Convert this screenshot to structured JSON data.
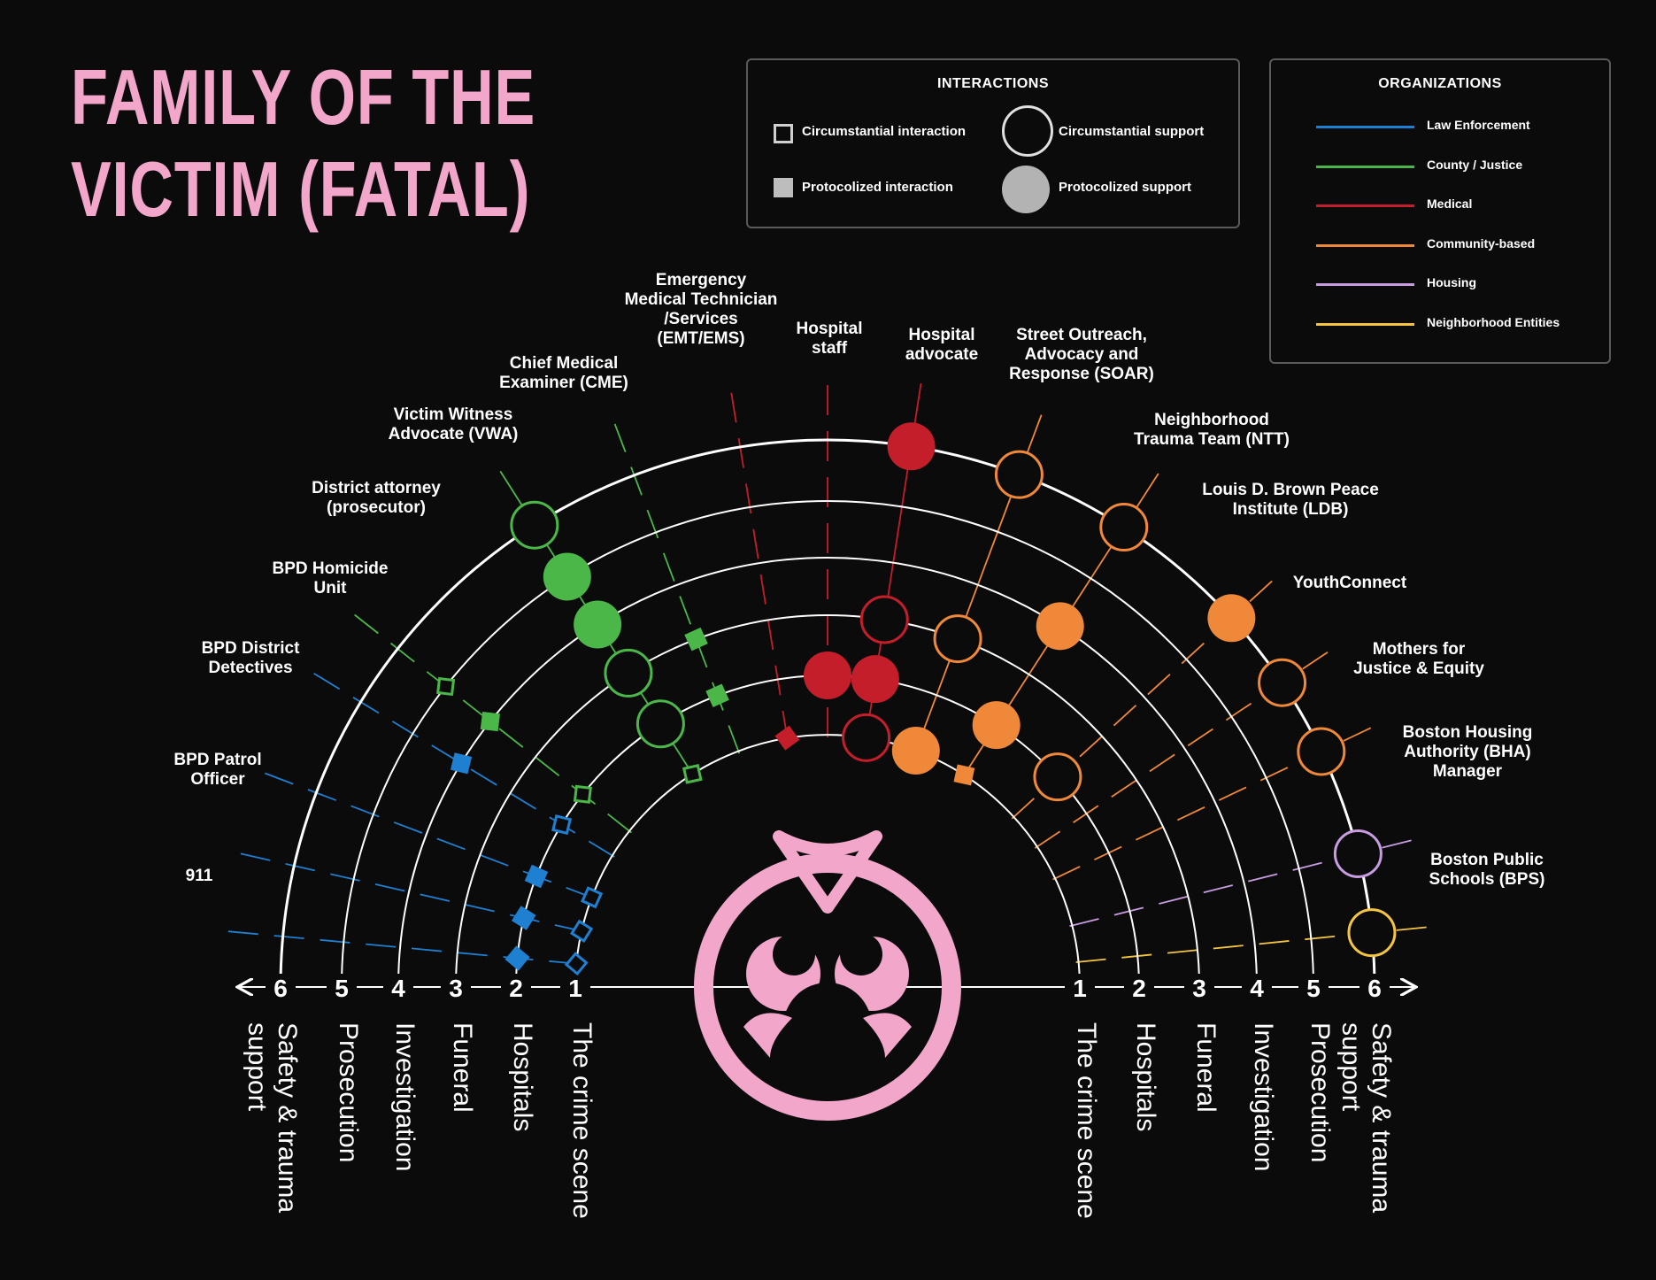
{
  "title": {
    "line1": "FAMILY OF THE",
    "line2": "VICTIM (FATAL)"
  },
  "interactions_legend": {
    "heading": "INTERACTIONS",
    "items": [
      "Circumstantial interaction",
      "Protocolized interaction",
      "Circumstantial support",
      "Protocolized support"
    ]
  },
  "organizations_legend": {
    "heading": "ORGANIZATIONS",
    "items": [
      {
        "label": "Law Enforcement",
        "color": "#1f7fd1"
      },
      {
        "label": "County / Justice",
        "color": "#4cb749"
      },
      {
        "label": "Medical",
        "color": "#c41e2b"
      },
      {
        "label": "Community-based",
        "color": "#f0883a"
      },
      {
        "label": "Housing",
        "color": "#c79de0"
      },
      {
        "label": "Neighborhood Entities",
        "color": "#f5c542"
      }
    ]
  },
  "stages": [
    {
      "num": "1",
      "label": "The crime scene"
    },
    {
      "num": "2",
      "label": "Hospitals"
    },
    {
      "num": "3",
      "label": "Funeral"
    },
    {
      "num": "4",
      "label": "Investigation"
    },
    {
      "num": "5",
      "label": "Prosecution"
    },
    {
      "num": "6",
      "label": "Safety & trauma support"
    }
  ],
  "actors": [
    {
      "label": "911",
      "category": "Law Enforcement"
    },
    {
      "label": "BPD Patrol Officer",
      "category": "Law Enforcement"
    },
    {
      "label": "BPD District Detectives",
      "category": "Law Enforcement"
    },
    {
      "label": "BPD Homicide Unit",
      "category": "Law Enforcement"
    },
    {
      "label": "District attorney (prosecutor)",
      "category": "County / Justice"
    },
    {
      "label": "Victim Witness Advocate (VWA)",
      "category": "County / Justice"
    },
    {
      "label": "Chief Medical Examiner (CME)",
      "category": "County / Justice"
    },
    {
      "label": "Emergency Medical Technician /Services (EMT/EMS)",
      "category": "Medical"
    },
    {
      "label": "Hospital staff",
      "category": "Medical"
    },
    {
      "label": "Hospital advocate",
      "category": "Medical"
    },
    {
      "label": "Street Outreach, Advocacy and Response (SOAR)",
      "category": "Community-based"
    },
    {
      "label": "Neighborhood Trauma Team (NTT)",
      "category": "Community-based"
    },
    {
      "label": "Louis D. Brown Peace Institute (LDB)",
      "category": "Community-based"
    },
    {
      "label": "YouthConnect",
      "category": "Community-based"
    },
    {
      "label": "Mothers for Justice & Equity",
      "category": "Community-based"
    },
    {
      "label": "Boston Housing Authority (BHA) Manager",
      "category": "Housing"
    },
    {
      "label": "Boston Public Schools (BPS)",
      "category": "Neighborhood Entities"
    }
  ]
}
